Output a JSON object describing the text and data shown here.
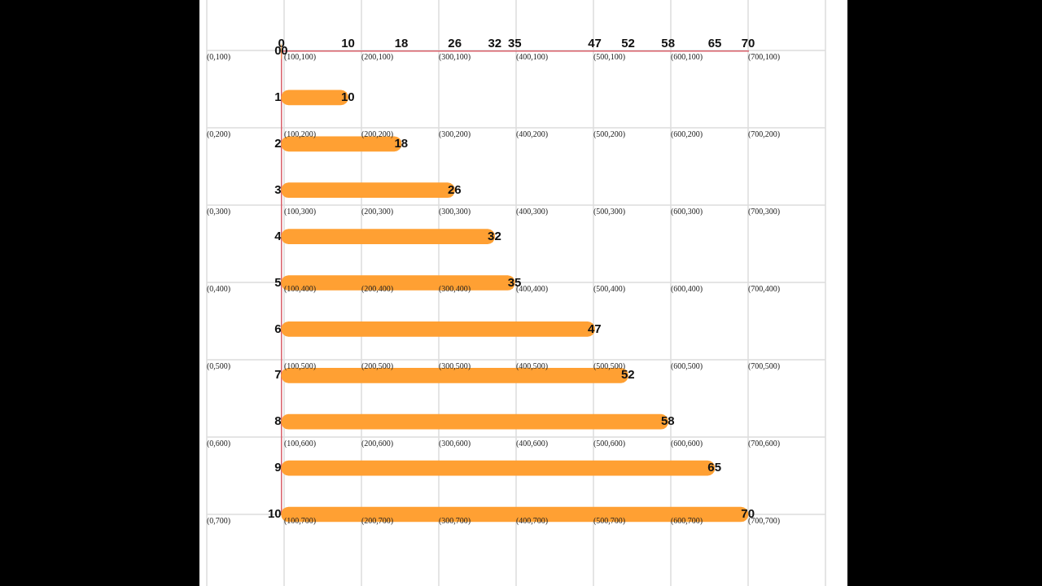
{
  "chart_data": {
    "type": "bar",
    "orientation": "horizontal",
    "categories": [
      "0",
      "1",
      "2",
      "3",
      "4",
      "5",
      "6",
      "7",
      "8",
      "9",
      "10"
    ],
    "values": [
      0,
      10,
      18,
      26,
      32,
      35,
      47,
      52,
      58,
      65,
      70
    ],
    "color": "#ffa033",
    "xlim": [
      0,
      70
    ],
    "xticks": [
      0,
      10,
      18,
      26,
      32,
      35,
      47,
      52,
      58,
      65,
      70
    ],
    "data_labels": true,
    "grid": true,
    "annotations": [
      "(0,100)",
      "(100,100)",
      "(200,100)",
      "(300,100)",
      "(400,100)",
      "(500,100)",
      "(600,100)",
      "(700,100)",
      "(0,200)",
      "(100,200)",
      "(200,200)",
      "(300,200)",
      "(400,200)",
      "(500,200)",
      "(600,200)",
      "(700,200)",
      "(0,300)",
      "(100,300)",
      "(200,300)",
      "(300,300)",
      "(400,300)",
      "(500,300)",
      "(600,300)",
      "(700,300)",
      "(0,400)",
      "(100,400)",
      "(200,400)",
      "(300,400)",
      "(400,400)",
      "(500,400)",
      "(600,400)",
      "(700,400)",
      "(0,500)",
      "(100,500)",
      "(200,500)",
      "(300,500)",
      "(400,500)",
      "(500,500)",
      "(600,500)",
      "(700,500)",
      "(0,600)",
      "(100,600)",
      "(200,600)",
      "(300,600)",
      "(400,600)",
      "(500,600)",
      "(600,600)",
      "(700,600)",
      "(0,700)",
      "(100,700)",
      "(200,700)",
      "(300,700)",
      "(400,700)",
      "(500,700)",
      "(600,700)",
      "(700,700)"
    ]
  }
}
